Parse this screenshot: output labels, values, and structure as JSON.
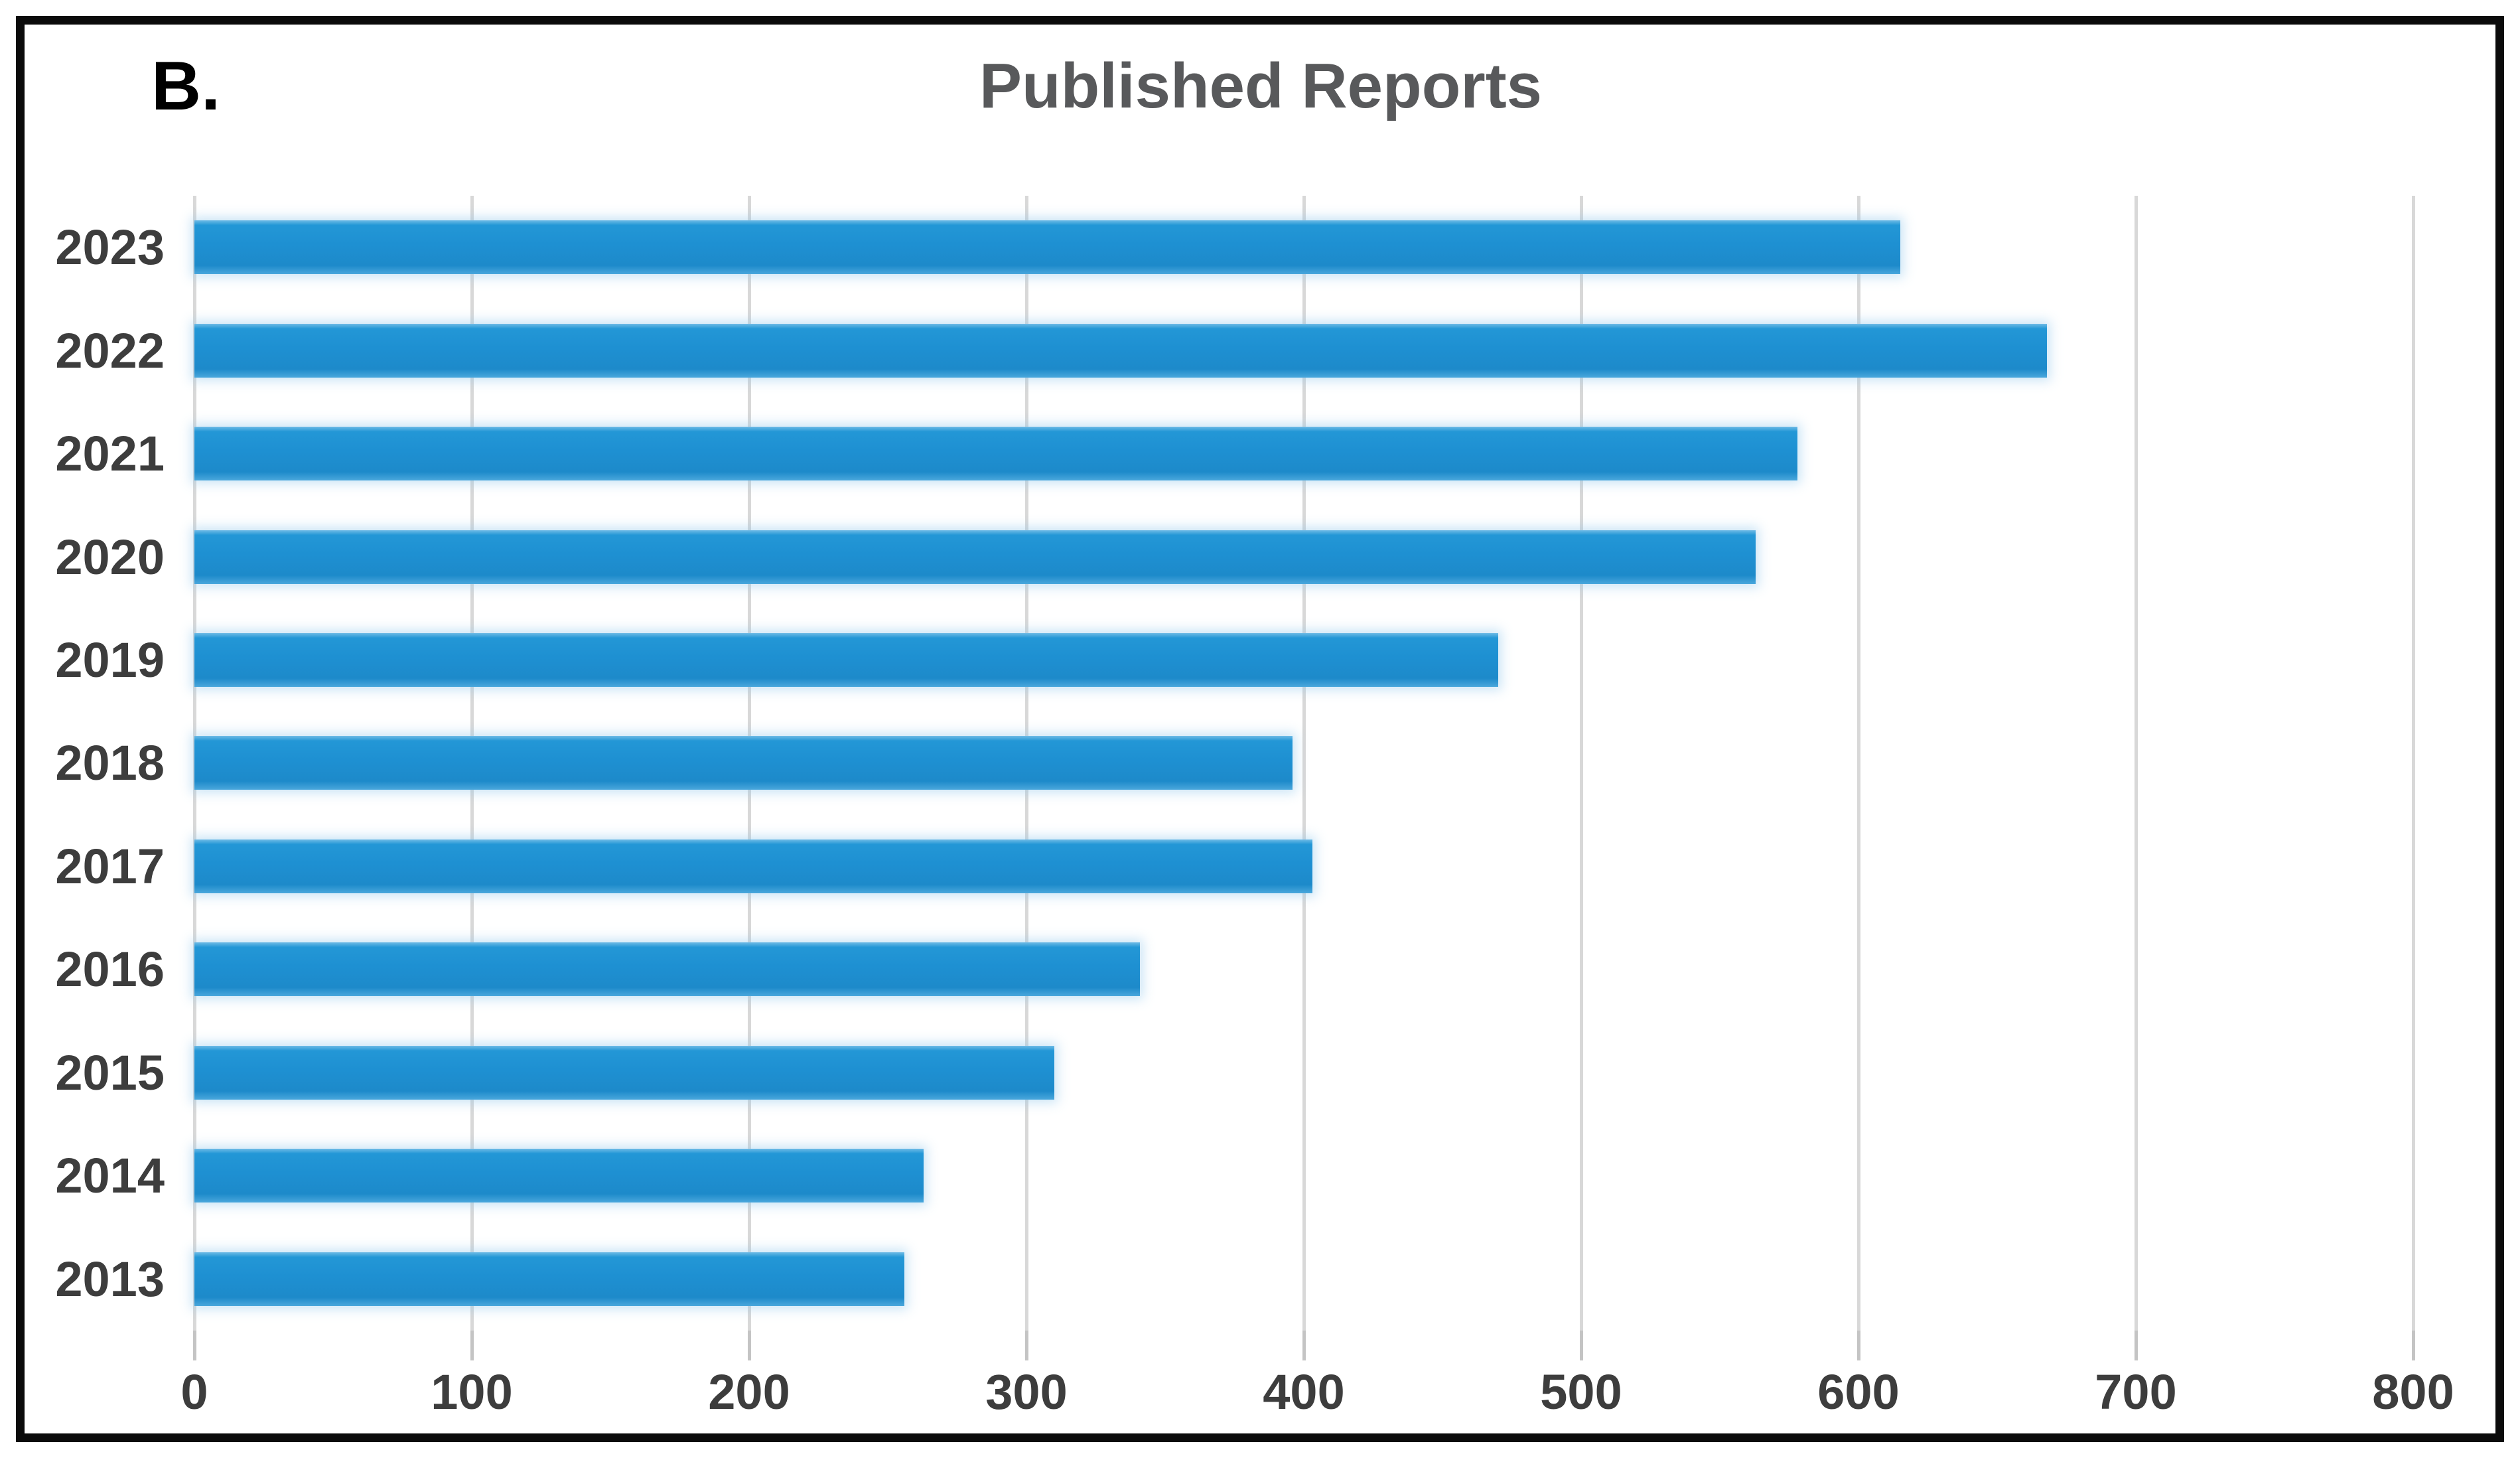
{
  "panel_label": "B.",
  "title": "Published Reports",
  "colors": {
    "bar": "#1E90D2",
    "gridline": "#D8D8D8",
    "tick": "#C4C4C4",
    "axis_label": "#3D3D3D",
    "title": "#58595B",
    "frame": "#0B0B0B",
    "background": "#FFFFFF"
  },
  "chart_data": {
    "type": "bar",
    "orientation": "horizontal",
    "title": "Published Reports",
    "xlabel": "",
    "ylabel": "",
    "categories": [
      "2023",
      "2022",
      "2021",
      "2020",
      "2019",
      "2018",
      "2017",
      "2016",
      "2015",
      "2014",
      "2013"
    ],
    "values": [
      615,
      668,
      578,
      563,
      470,
      396,
      403,
      341,
      310,
      263,
      256
    ],
    "xlim": [
      0,
      800
    ],
    "xticks": [
      0,
      100,
      200,
      300,
      400,
      500,
      600,
      700,
      800
    ],
    "grid": true,
    "legend": false
  }
}
